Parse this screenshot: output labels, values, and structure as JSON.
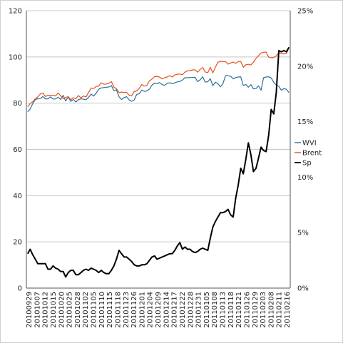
{
  "chart_data": {
    "type": "line",
    "title": "",
    "xlabel": "",
    "ylabel": "",
    "y2label": "",
    "ylim": [
      0,
      120
    ],
    "y_ticks": [
      0,
      20,
      40,
      60,
      80,
      100,
      120
    ],
    "y2lim": [
      0,
      0.25
    ],
    "y2_ticks": [
      "0%",
      "5%",
      "10%",
      "15%",
      "20%",
      "25%"
    ],
    "grid": "horizontal",
    "legend_position": "right",
    "x_tick_labels": [
      "20100929",
      "20101007",
      "20101012",
      "20101015",
      "20101020",
      "20101025",
      "20101028",
      "20101102",
      "20101105",
      "20101110",
      "20101115",
      "20101118",
      "20101123",
      "20101126",
      "20101201",
      "20101204",
      "20101209",
      "20101214",
      "20101217",
      "20101222",
      "20101228",
      "20101231",
      "20110105",
      "20110108",
      "20110113",
      "20110118",
      "20110121",
      "20110126",
      "20110129",
      "20110203",
      "20110208",
      "20110211",
      "20110216"
    ],
    "x": [
      "20100929",
      "20100930",
      "20101001",
      "20101004",
      "20101005",
      "20101006",
      "20101007",
      "20101008",
      "20101011",
      "20101012",
      "20101013",
      "20101014",
      "20101015",
      "20101018",
      "20101019",
      "20101020",
      "20101021",
      "20101022",
      "20101025",
      "20101026",
      "20101027",
      "20101028",
      "20101029",
      "20101101",
      "20101102",
      "20101103",
      "20101104",
      "20101105",
      "20101108",
      "20101109",
      "20101110",
      "20101111",
      "20101112",
      "20101115",
      "20101116",
      "20101117",
      "20101118",
      "20101119",
      "20101122",
      "20101123",
      "20101124",
      "20101125",
      "20101126",
      "20101129",
      "20101130",
      "20101201",
      "20101202",
      "20101203",
      "20101204",
      "20101206",
      "20101207",
      "20101208",
      "20101209",
      "20101210",
      "20101213",
      "20101214",
      "20101215",
      "20101216",
      "20101217",
      "20101220",
      "20101221",
      "20101222",
      "20101223",
      "20101224",
      "20101227",
      "20101228",
      "20101229",
      "20101230",
      "20101231",
      "20110103",
      "20110104",
      "20110105",
      "20110106",
      "20110107",
      "20110108",
      "20110110",
      "20110111",
      "20110112",
      "20110113",
      "20110114",
      "20110117",
      "20110118",
      "20110119",
      "20110120",
      "20110121",
      "20110124",
      "20110125",
      "20110126",
      "20110127",
      "20110128",
      "20110129",
      "20110131",
      "20110201",
      "20110202",
      "20110203",
      "20110204",
      "20110207",
      "20110208",
      "20110209",
      "20110210",
      "20110211",
      "20110214",
      "20110215",
      "20110216"
    ],
    "series": [
      {
        "name": "WVI",
        "color": "#2a6f97",
        "axis": "left",
        "values": [
          76.3,
          77.5,
          79.8,
          81.6,
          81.9,
          82.0,
          82.9,
          81.8,
          81.9,
          82.7,
          81.8,
          81.8,
          82.6,
          81.6,
          83.4,
          80.9,
          82.7,
          80.8,
          81.6,
          80.5,
          81.5,
          81.9,
          81.7,
          81.5,
          82.5,
          83.9,
          83.1,
          84.3,
          86.0,
          86.6,
          86.7,
          86.9,
          87.0,
          87.6,
          85.4,
          85.8,
          82.8,
          81.6,
          82.4,
          82.8,
          81.4,
          80.8,
          81.4,
          83.8,
          84.1,
          85.7,
          85.1,
          85.3,
          86.1,
          87.8,
          88.7,
          88.4,
          88.9,
          88.0,
          87.7,
          88.6,
          88.8,
          88.4,
          88.8,
          89.2,
          89.4,
          90.0,
          91.0,
          91.0,
          91.1,
          91.1,
          91.2,
          89.3,
          90.1,
          91.4,
          89.1,
          89.3,
          90.6,
          87.6,
          89.1,
          88.4,
          87.1,
          88.5,
          91.9,
          91.9,
          91.6,
          90.5,
          91.1,
          91.3,
          91.4,
          87.6,
          88.1,
          86.9,
          88.0,
          86.2,
          86.3,
          87.5,
          85.6,
          91.0,
          91.3,
          91.4,
          90.9,
          89.0,
          87.8,
          87.3,
          85.6,
          86.3,
          86.0,
          84.6
        ]
      },
      {
        "name": "Brent",
        "color": "#e8501e",
        "axis": "left",
        "values": [
          78.4,
          79.8,
          80.6,
          81.9,
          82.7,
          84.0,
          84.4,
          82.9,
          83.4,
          83.4,
          83.4,
          83.1,
          84.4,
          83.2,
          81.9,
          82.5,
          82.8,
          81.5,
          82.4,
          81.9,
          83.3,
          82.3,
          83.1,
          82.7,
          84.6,
          86.6,
          86.3,
          87.2,
          87.4,
          88.8,
          88.2,
          88.3,
          88.6,
          89.3,
          86.9,
          86.3,
          84.6,
          84.8,
          84.6,
          84.7,
          83.4,
          83.2,
          85.0,
          85.3,
          86.4,
          88.1,
          87.4,
          87.7,
          89.6,
          90.4,
          91.5,
          91.5,
          91.3,
          90.5,
          91.0,
          91.3,
          91.9,
          91.3,
          92.2,
          92.5,
          92.6,
          92.3,
          93.4,
          94.0,
          94.1,
          94.4,
          94.4,
          93.4,
          94.6,
          95.4,
          93.5,
          93.2,
          95.5,
          93.1,
          95.5,
          97.7,
          98.1,
          98.0,
          98.0,
          96.9,
          97.4,
          97.8,
          97.2,
          98.0,
          98.0,
          95.5,
          96.6,
          96.8,
          96.5,
          97.8,
          99.4,
          100.5,
          101.7,
          102.0,
          102.1,
          99.9,
          99.6,
          99.8,
          100.4,
          101.8,
          101.5,
          101.3,
          101.5,
          104.0
        ]
      },
      {
        "name": "Sp",
        "color": "#000000",
        "axis": "right",
        "values": [
          0.031,
          0.035,
          0.03,
          0.026,
          0.022,
          0.022,
          0.022,
          0.022,
          0.017,
          0.017,
          0.02,
          0.018,
          0.017,
          0.015,
          0.015,
          0.01,
          0.014,
          0.016,
          0.016,
          0.012,
          0.012,
          0.014,
          0.016,
          0.017,
          0.016,
          0.018,
          0.017,
          0.016,
          0.014,
          0.016,
          0.014,
          0.013,
          0.013,
          0.016,
          0.02,
          0.026,
          0.034,
          0.031,
          0.028,
          0.028,
          0.026,
          0.024,
          0.021,
          0.02,
          0.02,
          0.021,
          0.021,
          0.022,
          0.025,
          0.028,
          0.029,
          0.026,
          0.027,
          0.028,
          0.029,
          0.03,
          0.031,
          0.031,
          0.034,
          0.038,
          0.041,
          0.035,
          0.037,
          0.035,
          0.035,
          0.033,
          0.032,
          0.033,
          0.035,
          0.036,
          0.035,
          0.034,
          0.045,
          0.055,
          0.06,
          0.064,
          0.068,
          0.068,
          0.069,
          0.071,
          0.066,
          0.064,
          0.081,
          0.093,
          0.108,
          0.103,
          0.116,
          0.131,
          0.12,
          0.105,
          0.108,
          0.117,
          0.127,
          0.124,
          0.123,
          0.138,
          0.161,
          0.157,
          0.176,
          0.214,
          0.213,
          0.214,
          0.213,
          0.217
        ]
      }
    ]
  }
}
